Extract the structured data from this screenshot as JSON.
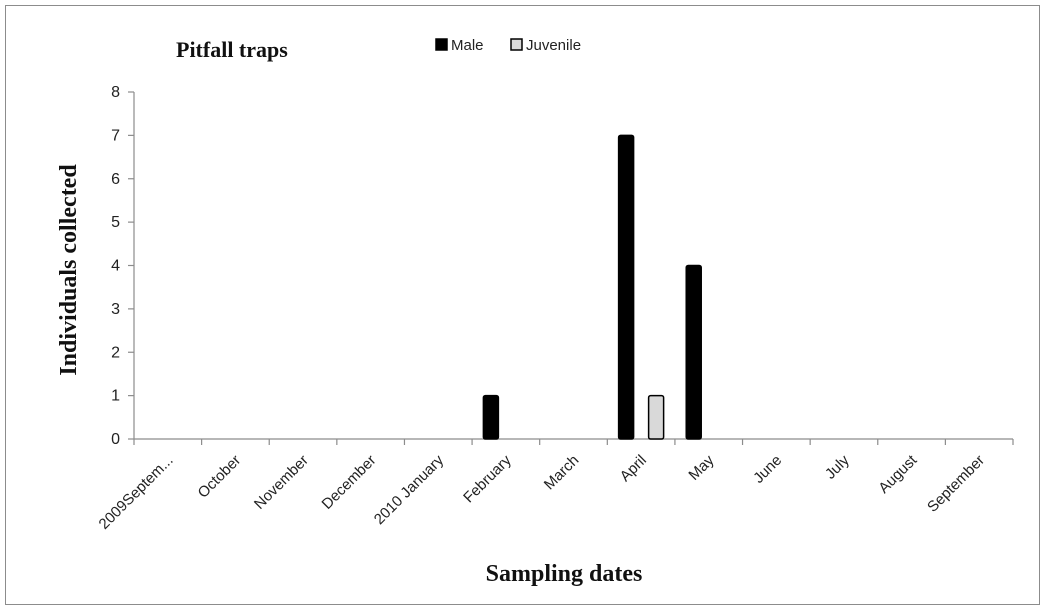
{
  "chart_data": {
    "type": "bar",
    "title": "Pitfall traps",
    "xlabel": "Sampling dates",
    "ylabel": "Individuals collected",
    "categories": [
      "2009Septem...",
      "October",
      "November",
      "December",
      "2010 January",
      "February",
      "March",
      "April",
      "May",
      "June",
      "July",
      "August",
      "September"
    ],
    "series": [
      {
        "name": "Male",
        "values": [
          0,
          0,
          0,
          0,
          0,
          1,
          0,
          7,
          4,
          0,
          0,
          0,
          0
        ],
        "color": "#000000"
      },
      {
        "name": "Juvenile",
        "values": [
          0,
          0,
          0,
          0,
          0,
          0,
          0,
          1,
          0,
          0,
          0,
          0,
          0
        ],
        "color": "#d9d9d9"
      }
    ],
    "ylim": [
      0,
      8
    ],
    "yticks": [
      0,
      1,
      2,
      3,
      4,
      5,
      6,
      7,
      8
    ],
    "grid": false,
    "legend_position": "top"
  }
}
